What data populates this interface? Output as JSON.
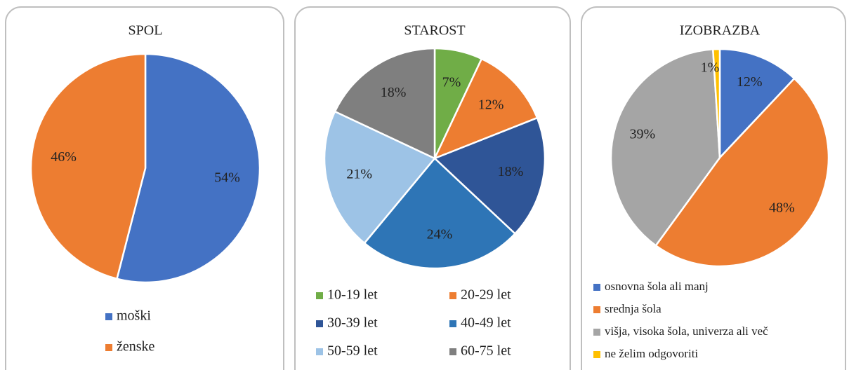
{
  "chart_data": [
    {
      "type": "pie",
      "title": "SPOL",
      "categories": [
        "moški",
        "ženske"
      ],
      "values": [
        54,
        46
      ],
      "value_labels": [
        "54%",
        "46%"
      ],
      "colors": [
        "#4472c4",
        "#ed7d31"
      ]
    },
    {
      "type": "pie",
      "title": "STAROST",
      "categories": [
        "10-19 let",
        "20-29 let",
        "30-39 let",
        "40-49 let",
        "50-59 let",
        "60-75 let"
      ],
      "values": [
        7,
        12,
        18,
        24,
        21,
        18
      ],
      "value_labels": [
        "7%",
        "12%",
        "18%",
        "24%",
        "21%",
        "18%"
      ],
      "colors": [
        "#70ad47",
        "#ed7d31",
        "#2f5597",
        "#2e75b6",
        "#9dc3e6",
        "#7f7f7f"
      ]
    },
    {
      "type": "pie",
      "title": "IZOBRAZBA",
      "categories": [
        "osnovna šola ali manj",
        "srednja šola",
        "višja, visoka šola, univerza ali več",
        "ne želim odgovoriti"
      ],
      "values": [
        12,
        48,
        39,
        1
      ],
      "value_labels": [
        "12%",
        "48%",
        "39%",
        "1%"
      ],
      "colors": [
        "#4472c4",
        "#ed7d31",
        "#a5a5a5",
        "#ffc000"
      ]
    }
  ]
}
